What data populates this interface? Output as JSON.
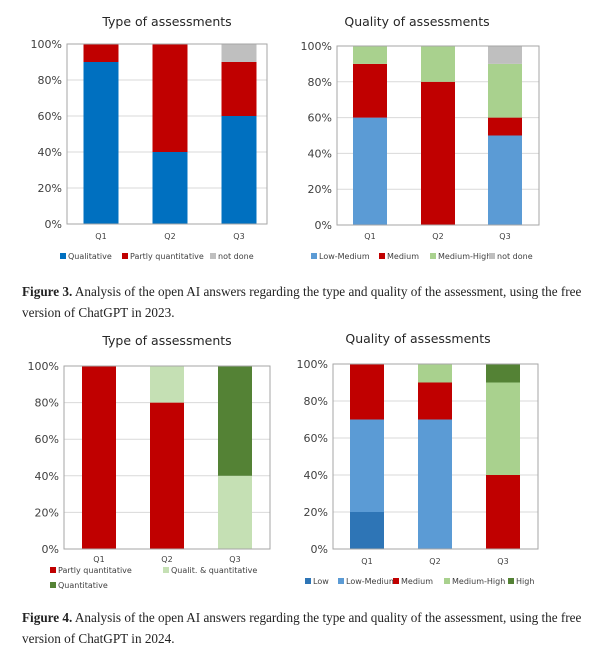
{
  "chart_data": [
    {
      "type": "bar",
      "stacked": true,
      "title": "Type of assessments",
      "categories": [
        "Q1",
        "Q2",
        "Q3"
      ],
      "ylim": [
        0,
        100
      ],
      "yticks": [
        "0%",
        "20%",
        "40%",
        "60%",
        "80%",
        "100%"
      ],
      "xlabel": "",
      "ylabel": "",
      "grid": true,
      "legend_position": "bottom",
      "series": [
        {
          "name": "Qualitative",
          "color": "#0070C0",
          "values": [
            90,
            40,
            60
          ]
        },
        {
          "name": "Partly quantitative",
          "color": "#C00000",
          "values": [
            10,
            60,
            30
          ]
        },
        {
          "name": "not done",
          "color": "#BFBFBF",
          "values": [
            0,
            0,
            10
          ]
        }
      ]
    },
    {
      "type": "bar",
      "stacked": true,
      "title": "Quality of assessments",
      "categories": [
        "Q1",
        "Q2",
        "Q3"
      ],
      "ylim": [
        0,
        100
      ],
      "yticks": [
        "0%",
        "20%",
        "40%",
        "60%",
        "80%",
        "100%"
      ],
      "xlabel": "",
      "ylabel": "",
      "grid": true,
      "legend_position": "bottom",
      "series": [
        {
          "name": "Low-Medium",
          "color": "#5B9BD5",
          "values": [
            60,
            0,
            50
          ]
        },
        {
          "name": "Medium",
          "color": "#C00000",
          "values": [
            30,
            80,
            10
          ]
        },
        {
          "name": "Medium-High",
          "color": "#A9D18E",
          "values": [
            10,
            20,
            30
          ]
        },
        {
          "name": "not done",
          "color": "#BFBFBF",
          "values": [
            0,
            0,
            10
          ]
        }
      ]
    },
    {
      "type": "bar",
      "stacked": true,
      "title": "Type of assessments",
      "categories": [
        "Q1",
        "Q2",
        "Q3"
      ],
      "ylim": [
        0,
        100
      ],
      "yticks": [
        "0%",
        "20%",
        "40%",
        "60%",
        "80%",
        "100%"
      ],
      "xlabel": "",
      "ylabel": "",
      "grid": true,
      "legend_position": "bottom",
      "series": [
        {
          "name": "Partly quantitative",
          "color": "#C00000",
          "values": [
            100,
            80,
            0
          ]
        },
        {
          "name": "Qualit. & quantitative",
          "color": "#C5E0B4",
          "values": [
            0,
            20,
            40
          ]
        },
        {
          "name": "Quantitative",
          "color": "#548235",
          "values": [
            0,
            0,
            60
          ]
        }
      ]
    },
    {
      "type": "bar",
      "stacked": true,
      "title": "Quality of assessments",
      "categories": [
        "Q1",
        "Q2",
        "Q3"
      ],
      "ylim": [
        0,
        100
      ],
      "yticks": [
        "0%",
        "20%",
        "40%",
        "60%",
        "80%",
        "100%"
      ],
      "xlabel": "",
      "ylabel": "",
      "grid": true,
      "legend_position": "bottom",
      "series": [
        {
          "name": "Low",
          "color": "#2E75B6",
          "values": [
            20,
            0,
            0
          ]
        },
        {
          "name": "Low-Medium",
          "color": "#5B9BD5",
          "values": [
            50,
            70,
            0
          ]
        },
        {
          "name": "Medium",
          "color": "#C00000",
          "values": [
            30,
            20,
            40
          ]
        },
        {
          "name": "Medium-High",
          "color": "#A9D18E",
          "values": [
            0,
            10,
            50
          ]
        },
        {
          "name": "High",
          "color": "#548235",
          "values": [
            0,
            0,
            10
          ]
        }
      ]
    }
  ],
  "captions": [
    {
      "label": "Figure 3.",
      "text": " Analysis of the open AI answers regarding the type and quality of the assessment, using the free version of ChatGPT in 2023."
    },
    {
      "label": "Figure 4.",
      "text": " Analysis of the open AI answers regarding the type and quality of the assessment, using the free version of ChatGPT in 2024."
    }
  ]
}
